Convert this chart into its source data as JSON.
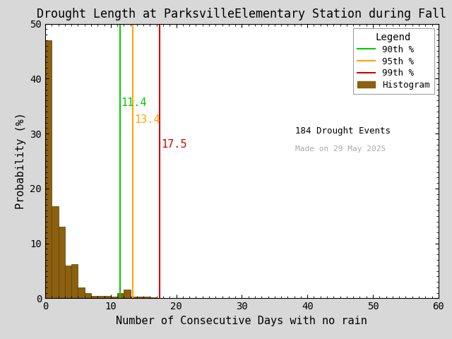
{
  "title": "Drought Length at ParksvilleElementary Station during Fall",
  "xlabel": "Number of Consecutive Days with no rain",
  "ylabel": "Probability (%)",
  "xlim": [
    0,
    60
  ],
  "ylim": [
    0,
    50
  ],
  "xticks": [
    0,
    10,
    20,
    30,
    40,
    50,
    60
  ],
  "yticks": [
    0,
    10,
    20,
    30,
    40,
    50
  ],
  "bar_values": [
    47.0,
    16.8,
    13.0,
    6.0,
    6.2,
    2.0,
    1.0,
    0.5,
    0.5,
    0.5,
    0.3,
    1.0,
    1.6,
    0.3,
    0.3,
    0.3,
    0.2,
    0.1,
    0.1,
    0.0,
    0.0
  ],
  "bar_color": "#8B6010",
  "bar_edgecolor": "#5a3d00",
  "percentile_90": 11.4,
  "percentile_95": 13.4,
  "percentile_99": 17.5,
  "p90_color": "#00cc00",
  "p95_color": "#ffa500",
  "p99_color": "#cc0000",
  "drought_events": 184,
  "made_on": "29 May 2025",
  "legend_title": "Legend",
  "background_color": "#ffffff",
  "fig_background": "#d8d8d8",
  "title_fontsize": 12,
  "axis_fontsize": 11,
  "tick_fontsize": 10,
  "annotation_fontsize": 11
}
